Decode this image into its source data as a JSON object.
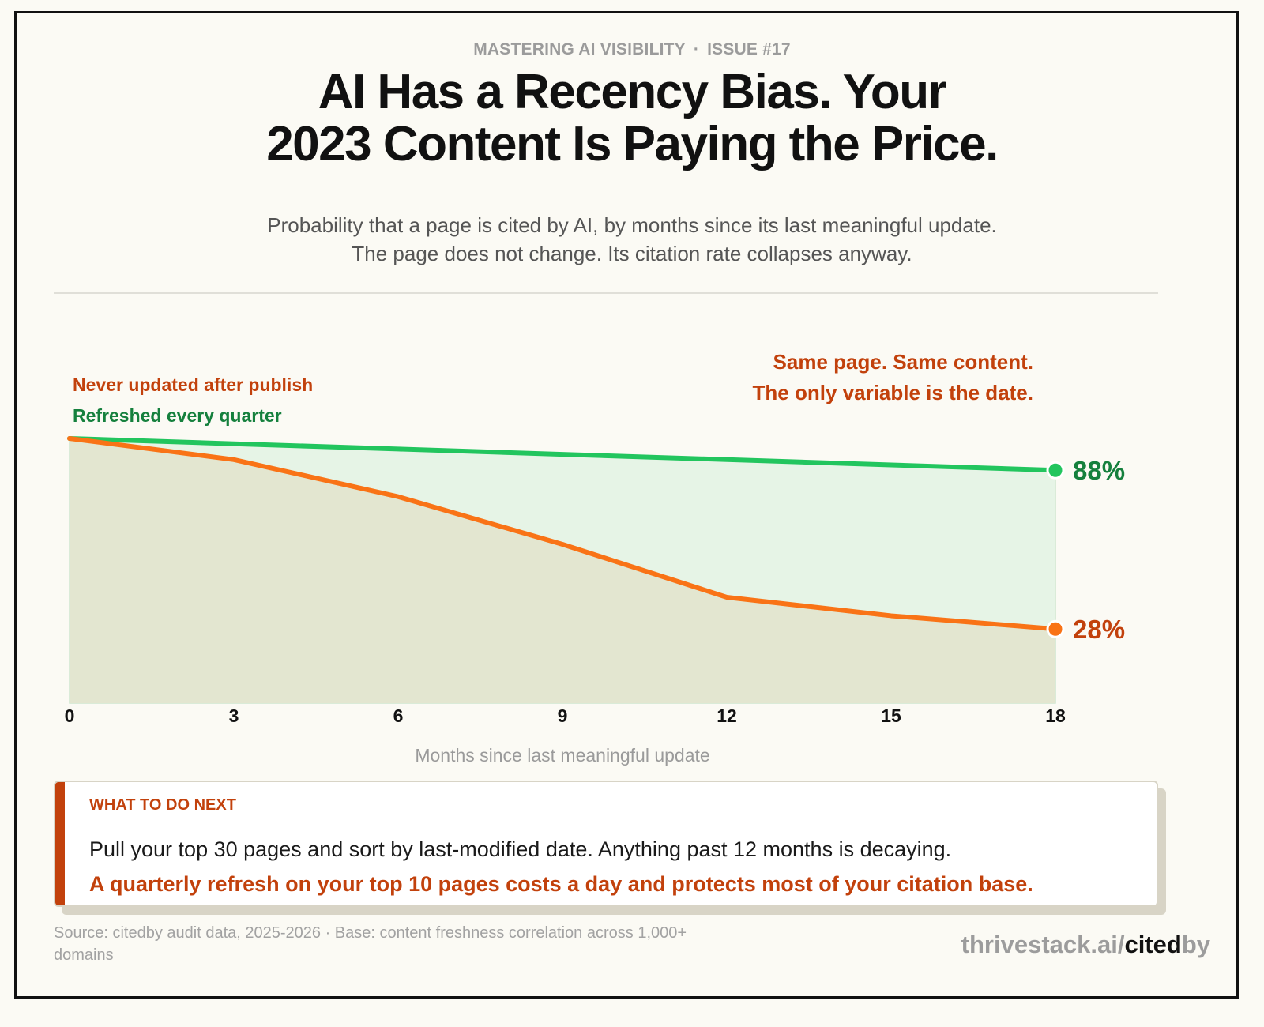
{
  "header": {
    "kicker_series": "MASTERING AI VISIBILITY",
    "kicker_separator": "·",
    "kicker_issue": "ISSUE #17",
    "title_line1": "AI Has a Recency Bias. Your",
    "title_line2": "2023 Content Is Paying the Price.",
    "subtitle_line1": "Probability that a page is cited by AI, by months since its last meaningful update.",
    "subtitle_line2": "The page does not change. Its citation rate collapses anyway."
  },
  "chart_data": {
    "type": "area",
    "x": [
      0,
      3,
      6,
      9,
      12,
      15,
      18
    ],
    "xlabel": "Months since last meaningful update",
    "xlim": [
      0,
      18
    ],
    "ylim": [
      0,
      100
    ],
    "series": [
      {
        "name": "Refreshed every quarter",
        "values": [
          100,
          98,
          96,
          94,
          92,
          90,
          88
        ],
        "end_label": "88%",
        "color": "#22c55e",
        "label_color": "#15803d",
        "fill": "#e6f4e6"
      },
      {
        "name": "Never updated after publish",
        "values": [
          100,
          92,
          78,
          60,
          40,
          33,
          28
        ],
        "end_label": "28%",
        "color": "#f97316",
        "label_color": "#c2410c",
        "fill": "#e3e6d0"
      }
    ],
    "annotation_line1": "Same page. Same content.",
    "annotation_line2": "The only variable is the date.",
    "annotation_color": "#c2410c",
    "grid": false
  },
  "callout": {
    "heading": "WHAT TO DO NEXT",
    "body": "Pull your top 30 pages and sort by last-modified date. Anything past 12 months is decaying.",
    "cta": "A quarterly refresh on your top 10 pages costs a day and protects most of your citation base."
  },
  "footer": {
    "source_line1": "Source: citedby audit data, 2025-2026 · Base: content freshness correlation across 1,000+",
    "source_line2": "domains",
    "brand_prefix": "thrivestack.ai/",
    "brand_cited": "cited",
    "brand_by": "by"
  }
}
